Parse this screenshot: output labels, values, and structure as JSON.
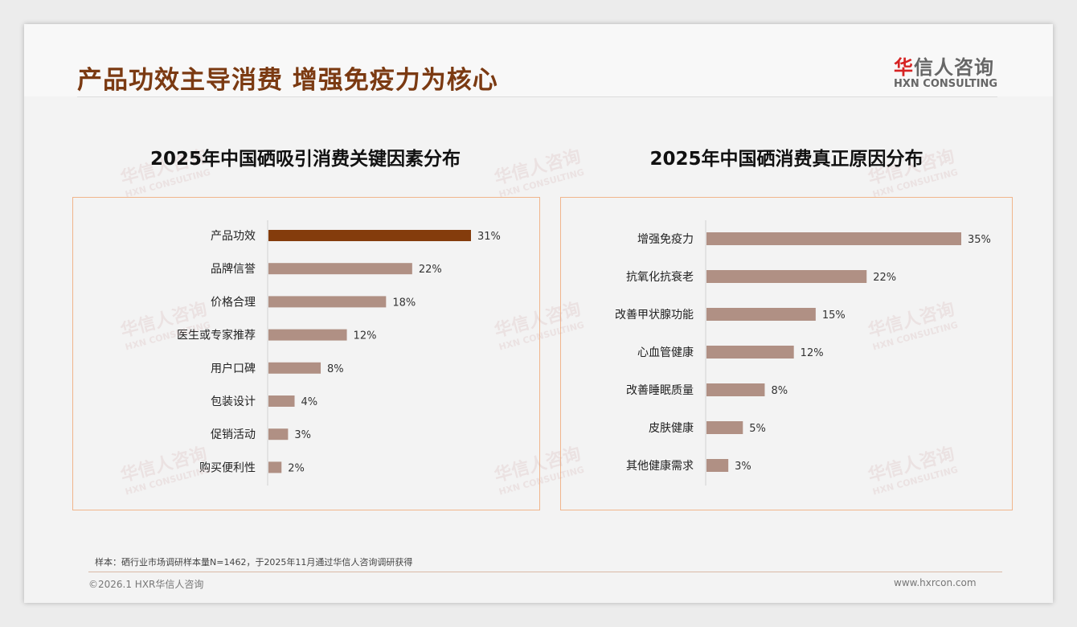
{
  "header": {
    "title": "产品功效主导消费 增强免疫力为核心",
    "logo_cn": "华信人咨询",
    "logo_en": "HXN CONSULTING"
  },
  "colors": {
    "highlight": "#843c0c",
    "bar": "#b09084",
    "title": "#7b3a12"
  },
  "chart_data": [
    {
      "type": "bar",
      "orientation": "horizontal",
      "title": "2025年中国硒吸引消费关键因素分布",
      "categories": [
        "产品功效",
        "品牌信誉",
        "价格合理",
        "医生或专家推荐",
        "用户口碑",
        "包装设计",
        "促销活动",
        "购买便利性"
      ],
      "values": [
        31,
        22,
        18,
        12,
        8,
        4,
        3,
        2
      ],
      "unit": "%",
      "highlight_index": 0,
      "xlim": [
        0,
        31
      ]
    },
    {
      "type": "bar",
      "orientation": "horizontal",
      "title": "2025年中国硒消费真正原因分布",
      "categories": [
        "增强免疫力",
        "抗氧化抗衰老",
        "改善甲状腺功能",
        "心血管健康",
        "改善睡眠质量",
        "皮肤健康",
        "其他健康需求"
      ],
      "values": [
        35,
        22,
        15,
        12,
        8,
        5,
        3
      ],
      "unit": "%",
      "highlight_index": -1,
      "xlim": [
        0,
        35
      ]
    }
  ],
  "footer": {
    "note": "样本：硒行业市场调研样本量N=1462，于2025年11月通过华信人咨询调研获得",
    "copyright": "©2026.1 HXR华信人咨询",
    "website": "www.hxrcon.com"
  }
}
